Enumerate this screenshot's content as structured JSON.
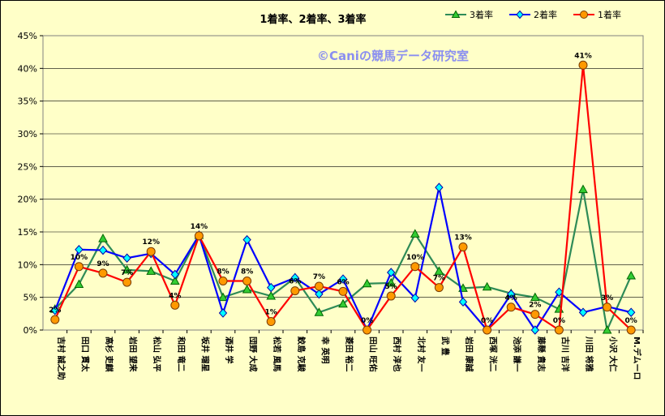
{
  "chart_data": {
    "type": "line",
    "title": "1着率、2着率、3着率",
    "watermark": "©Caniの競馬データ研究室",
    "ylim": [
      0,
      45
    ],
    "yticks": [
      "0%",
      "5%",
      "10%",
      "15%",
      "20%",
      "25%",
      "30%",
      "35%",
      "40%",
      "45%"
    ],
    "grid": true,
    "legend_position": "top-right",
    "categories": [
      "吉村 誠之助",
      "田口 貫太",
      "高杉 吏麒",
      "岩田 望来",
      "松山 弘平",
      "和田 竜二",
      "坂井 瑠星",
      "酒井 学",
      "団野 大成",
      "松若 風馬",
      "鮫島 克駿",
      "幸 英明",
      "菱田 裕二",
      "田山 旺佑",
      "西村 淳也",
      "北村 友一",
      "武 豊",
      "岩田 康誠",
      "西塚 洸二",
      "池添 謙一",
      "藤懸 貴志",
      "古川 吉洋",
      "川田 将雅",
      "小沢 大仁",
      "M.デムーロ"
    ],
    "series": [
      {
        "name": "3着率",
        "color": "#2e8b57",
        "marker": "triangle",
        "marker_color": "#33cc33",
        "values": [
          3.2,
          7.0,
          14.0,
          9.2,
          9.0,
          7.5,
          14.5,
          5.0,
          6.2,
          5.2,
          8.0,
          2.7,
          4.0,
          7.1,
          7.2,
          14.7,
          9.0,
          6.4,
          6.6,
          5.6,
          5.0,
          3.2,
          21.5,
          0.0,
          8.3
        ]
      },
      {
        "name": "2着率",
        "color": "#0000ff",
        "marker": "diamond",
        "marker_color": "#00ffff",
        "values": [
          3.0,
          12.3,
          12.2,
          11.0,
          11.7,
          8.5,
          14.5,
          2.6,
          13.8,
          6.5,
          8.0,
          5.5,
          7.8,
          0.0,
          8.8,
          4.9,
          21.8,
          4.3,
          0.0,
          5.5,
          0.0,
          5.8,
          2.7,
          3.6,
          2.7
        ]
      },
      {
        "name": "1着率",
        "color": "#ff0000",
        "marker": "circle",
        "marker_color": "#ff9900",
        "values": [
          1.6,
          9.7,
          8.7,
          7.3,
          12.0,
          3.8,
          14.4,
          7.5,
          7.5,
          1.3,
          6.0,
          6.7,
          5.9,
          0.0,
          5.2,
          9.7,
          6.5,
          12.7,
          0.0,
          3.5,
          2.4,
          0.0,
          40.5,
          3.5,
          0.0
        ]
      }
    ],
    "data_labels": [
      "2%",
      "10%",
      "9%",
      "7%",
      "12%",
      "4%",
      "14%",
      "8%",
      "8%",
      "1%",
      "6%",
      "7%",
      "6%",
      "0%",
      "5%",
      "10%",
      "7%",
      "13%",
      "0%",
      "4%",
      "2%",
      "0%",
      "41%",
      "3%",
      "0%"
    ]
  }
}
